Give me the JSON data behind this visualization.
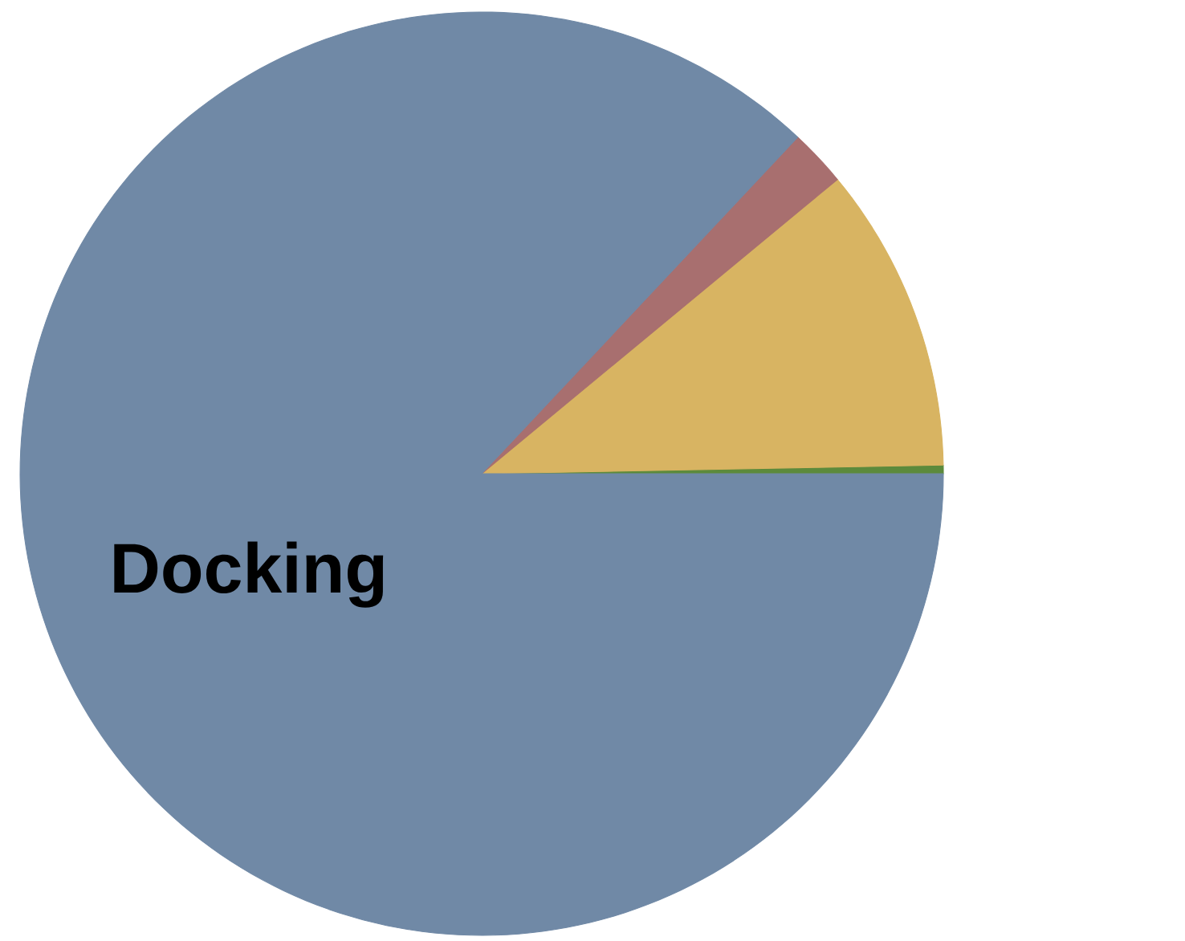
{
  "chart_data": {
    "type": "pie",
    "categories": [
      null,
      null,
      null,
      "Docking"
    ],
    "values": [
      0.3,
      10.7,
      2,
      87
    ],
    "colors": [
      "#5c8a3c",
      "#d8b462",
      "#a86f6f",
      "#7089a6"
    ]
  }
}
